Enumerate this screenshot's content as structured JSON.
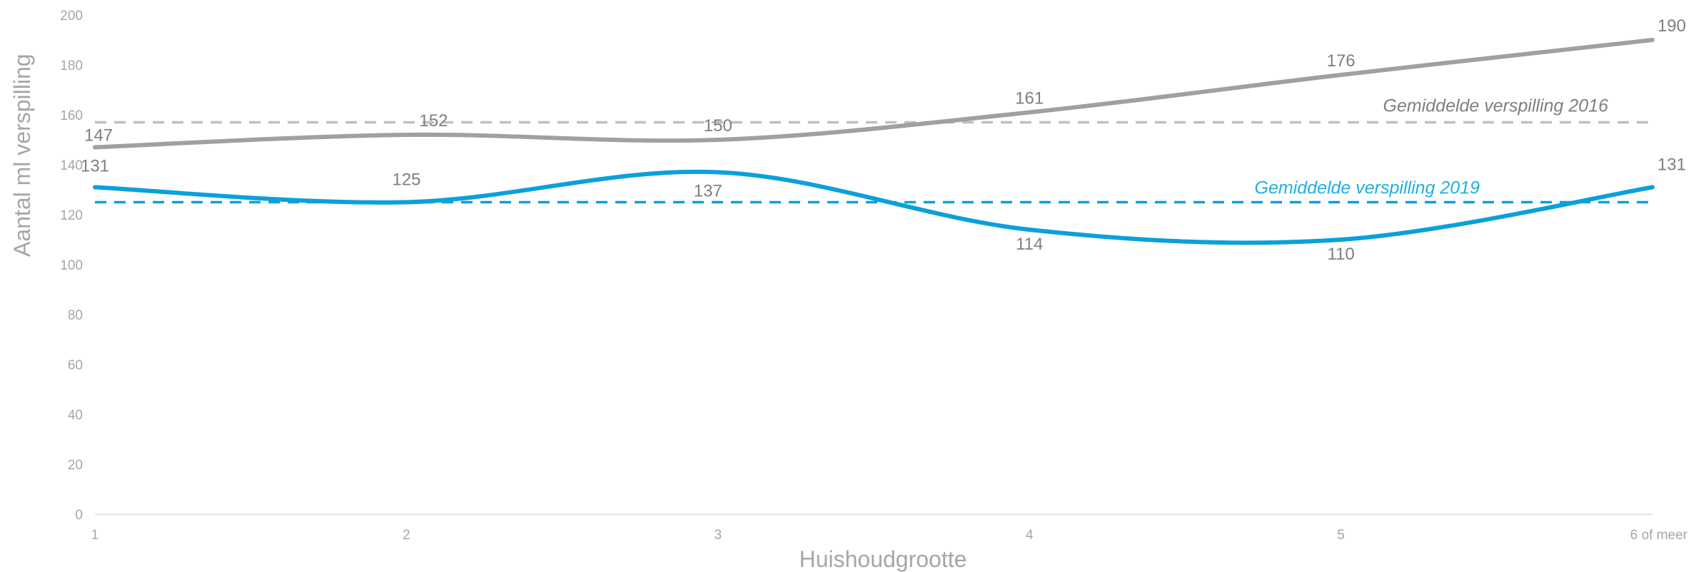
{
  "chart_data": {
    "type": "line",
    "title": "",
    "xlabel": "Huishoudgrootte",
    "ylabel": "Aantal ml verspilling",
    "categories": [
      "1",
      "2",
      "3",
      "4",
      "5",
      "6 of meer"
    ],
    "ylim": [
      0,
      200
    ],
    "yticks": [
      0,
      20,
      40,
      60,
      80,
      100,
      120,
      140,
      160,
      180,
      200
    ],
    "grid": false,
    "series": [
      {
        "name": "",
        "color": "#a0a0a0",
        "values": [
          147,
          152,
          150,
          161,
          176,
          190
        ],
        "smooth": true
      },
      {
        "name": "",
        "color": "#0aa0dc",
        "values": [
          131,
          125,
          137,
          114,
          110,
          131
        ],
        "smooth": true
      }
    ],
    "reference_lines": [
      {
        "label": "Gemiddelde verspilling 2016",
        "value": 157,
        "color": "#bfbfbf",
        "label_color": "#7f7f7f",
        "dashed": true
      },
      {
        "label": "Gemiddelde verspilling 2019",
        "value": 125,
        "color": "#0aa0dc",
        "label_color": "#1fb0e0",
        "dashed": true
      }
    ]
  }
}
